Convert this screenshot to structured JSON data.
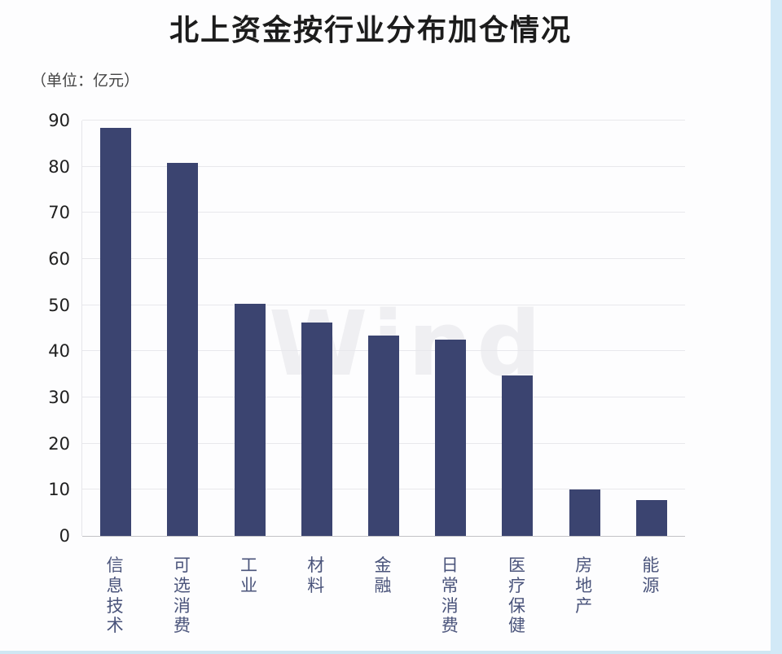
{
  "chart_data": {
    "type": "bar",
    "title": "北上资金按行业分布加仓情况",
    "unit_label": "（单位：亿元）",
    "categories": [
      "信息技术",
      "可选消费",
      "工业",
      "材料",
      "金融",
      "日常消费",
      "医疗保健",
      "房地产",
      "能源"
    ],
    "values": [
      88.4,
      80.8,
      50.3,
      46.2,
      43.5,
      42.5,
      34.7,
      10.1,
      7.8
    ],
    "ylim": [
      0,
      90
    ],
    "ytick_step": 10,
    "grid": true,
    "legend": "none",
    "bar_color": "#3b4470",
    "category_label_color": "#4a547b",
    "watermark": "Wind"
  }
}
